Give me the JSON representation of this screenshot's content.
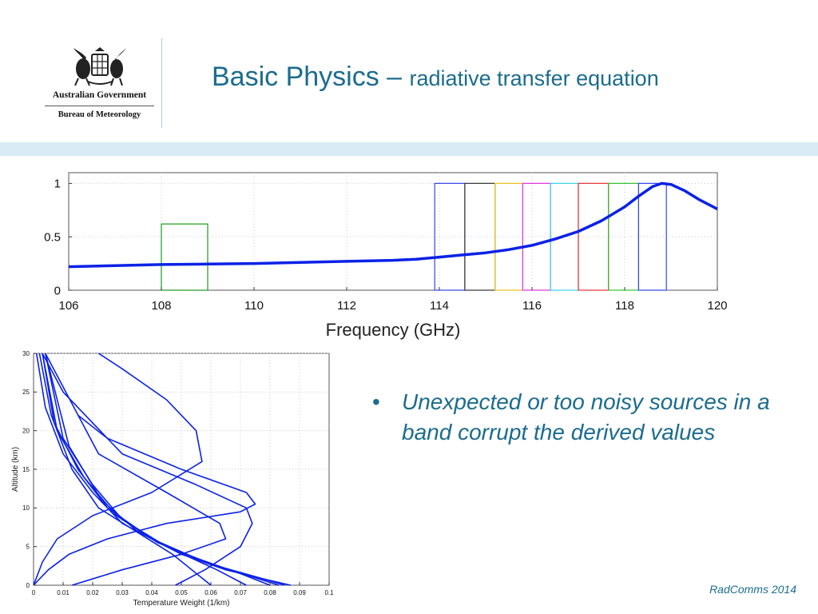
{
  "header": {
    "org_line1": "Australian Government",
    "org_line2": "Bureau of Meteorology",
    "title_main": "Basic Physics – ",
    "title_sub": "radiative transfer equation"
  },
  "bullets": [
    "Unexpected or too noisy sources in a band corrupt the derived values"
  ],
  "footer": "RadComms 2014",
  "colors": {
    "title": "#1b6c8e",
    "band": "#d9ebf4",
    "curve": "#0b22e6"
  },
  "chart_data": [
    {
      "type": "line",
      "title": "",
      "xlabel": "Frequency (GHz)",
      "ylabel": "",
      "xlim": [
        106,
        120
      ],
      "ylim": [
        0,
        1.1
      ],
      "x_ticks": [
        106,
        108,
        110,
        112,
        114,
        116,
        118,
        120
      ],
      "x_tick_labels": [
        "106",
        "108",
        "110",
        "112",
        "114",
        "116",
        "118",
        "120"
      ],
      "y_ticks": [
        0,
        0.5,
        1
      ],
      "y_tick_labels": [
        "0",
        "0.5",
        "1"
      ],
      "grid": true,
      "series": [
        {
          "x": [
            106,
            107,
            108,
            109,
            110,
            111,
            112,
            113,
            113.5,
            114,
            114.5,
            115,
            115.5,
            116,
            116.5,
            117,
            117.5,
            118,
            118.3,
            118.6,
            118.8,
            119,
            119.3,
            119.6,
            120
          ],
          "y": [
            0.22,
            0.23,
            0.24,
            0.245,
            0.25,
            0.26,
            0.27,
            0.28,
            0.29,
            0.31,
            0.33,
            0.35,
            0.38,
            0.42,
            0.48,
            0.55,
            0.65,
            0.78,
            0.88,
            0.97,
            1.0,
            0.99,
            0.93,
            0.85,
            0.76
          ]
        }
      ],
      "bands": [
        {
          "start": 108.0,
          "end": 109.0,
          "height": 0.62,
          "color": "#1a9a1a"
        },
        {
          "start": 113.9,
          "end": 114.55,
          "height": 1.0,
          "color": "#3344ee"
        },
        {
          "start": 114.55,
          "end": 115.2,
          "height": 1.0,
          "color": "#333333"
        },
        {
          "start": 115.2,
          "end": 115.8,
          "height": 1.0,
          "color": "#e6c21c"
        },
        {
          "start": 115.8,
          "end": 116.4,
          "height": 1.0,
          "color": "#e030e0"
        },
        {
          "start": 116.4,
          "end": 117.0,
          "height": 1.0,
          "color": "#38d4e8"
        },
        {
          "start": 117.0,
          "end": 117.65,
          "height": 1.0,
          "color": "#e83030"
        },
        {
          "start": 117.65,
          "end": 118.3,
          "height": 1.0,
          "color": "#30c030"
        },
        {
          "start": 118.3,
          "end": 118.9,
          "height": 1.0,
          "color": "#3344ee"
        }
      ]
    },
    {
      "type": "line",
      "title": "",
      "xlabel": "Temperature Weight (1/km)",
      "ylabel": "Altitude (km)",
      "xlim": [
        0,
        0.1
      ],
      "ylim": [
        0,
        30
      ],
      "x_ticks": [
        0,
        0.01,
        0.02,
        0.03,
        0.04,
        0.05,
        0.06,
        0.07,
        0.08,
        0.09,
        0.1
      ],
      "x_tick_labels": [
        "0",
        "0.01",
        "0.02",
        "0.03",
        "0.04",
        "0.05",
        "0.06",
        "0.07",
        "0.08",
        "0.09",
        "0.1"
      ],
      "y_ticks": [
        0,
        5,
        10,
        15,
        20,
        25,
        30
      ],
      "y_tick_labels": [
        "0",
        "5",
        "10",
        "15",
        "20",
        "25",
        "30"
      ],
      "grid": true,
      "series": [
        {
          "x": [
            0.06,
            0.047,
            0.022,
            0.013,
            0.006,
            0.002
          ],
          "y": [
            0,
            4,
            10,
            15,
            22,
            30
          ]
        },
        {
          "x": [
            0.072,
            0.062,
            0.045,
            0.03,
            0.02,
            0.01,
            0.004,
            0.001
          ],
          "y": [
            0,
            2,
            5,
            8,
            12,
            17,
            23,
            30
          ]
        },
        {
          "x": [
            0.08,
            0.07,
            0.055,
            0.04,
            0.025,
            0.015,
            0.007,
            0.003
          ],
          "y": [
            0,
            1.5,
            3.5,
            6,
            10,
            15,
            21,
            30
          ]
        },
        {
          "x": [
            0.083,
            0.073,
            0.058,
            0.042,
            0.028,
            0.017,
            0.008,
            0.003
          ],
          "y": [
            0,
            1.2,
            3,
            5.5,
            9,
            14,
            20,
            30
          ]
        },
        {
          "x": [
            0.085,
            0.076,
            0.062,
            0.045,
            0.03,
            0.02,
            0.01,
            0.004
          ],
          "y": [
            0,
            1,
            2.5,
            5,
            8.5,
            13,
            19,
            30
          ]
        },
        {
          "x": [
            0.087,
            0.078,
            0.065,
            0.05,
            0.035,
            0.023,
            0.012,
            0.004
          ],
          "y": [
            0,
            0.8,
            2,
            4,
            7,
            11,
            18,
            30
          ]
        },
        {
          "x": [
            0.013,
            0.03,
            0.05,
            0.065,
            0.063,
            0.045,
            0.022,
            0.004
          ],
          "y": [
            0,
            2,
            4,
            6,
            8,
            12,
            17,
            30
          ]
        },
        {
          "x": [
            0.048,
            0.058,
            0.07,
            0.074,
            0.072,
            0.055,
            0.03,
            0.01,
            0.003
          ],
          "y": [
            0,
            2,
            5,
            8,
            10,
            13,
            17,
            25,
            30
          ]
        },
        {
          "x": [
            0.0,
            0.005,
            0.012,
            0.025,
            0.045,
            0.07,
            0.075,
            0.072,
            0.05,
            0.025,
            0.015
          ],
          "y": [
            0,
            2,
            4,
            6,
            8,
            9.5,
            10.5,
            12,
            15,
            19,
            22
          ]
        },
        {
          "x": [
            0.0,
            0.003,
            0.008,
            0.02,
            0.04,
            0.057,
            0.055,
            0.045,
            0.03,
            0.022
          ],
          "y": [
            0,
            3,
            6,
            9,
            12,
            16,
            20,
            24,
            28,
            30
          ]
        }
      ]
    }
  ]
}
